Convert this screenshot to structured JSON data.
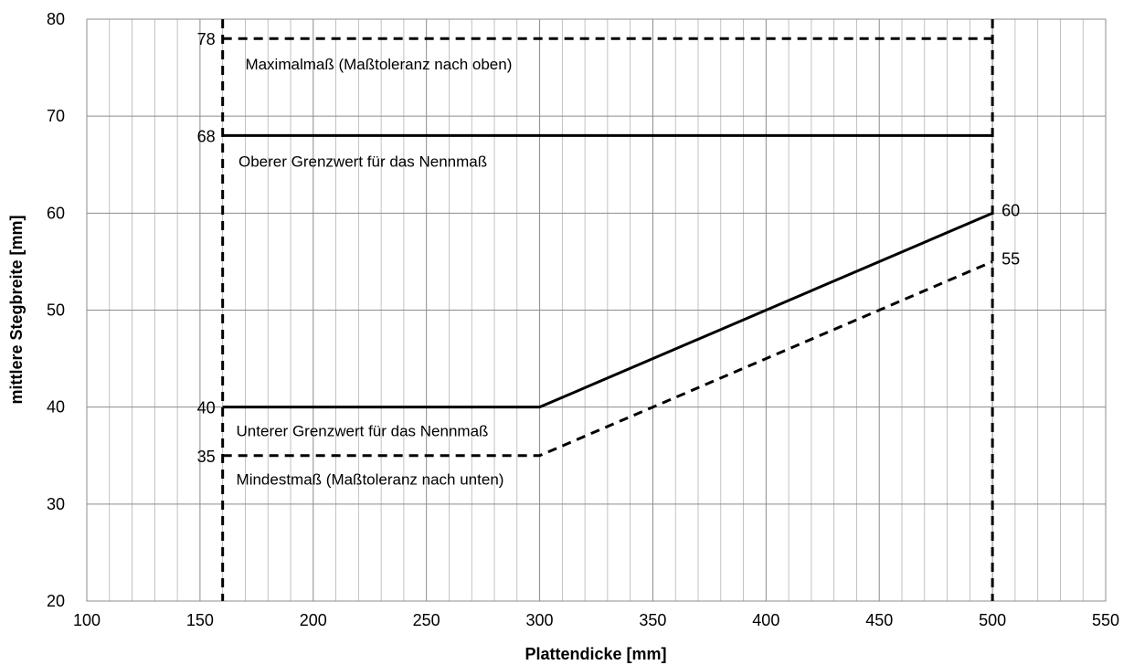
{
  "chart_data": {
    "type": "line",
    "xlabel": "Plattendicke  [mm]",
    "ylabel": "mittlere Stegbreite [mm]",
    "xlim": [
      100,
      550
    ],
    "ylim": [
      20,
      80
    ],
    "x_ticks": [
      100,
      150,
      200,
      250,
      300,
      350,
      400,
      450,
      500,
      550
    ],
    "y_ticks": [
      20,
      30,
      40,
      50,
      60,
      70,
      80
    ],
    "x_minor_step": 10,
    "grid": true,
    "legend": "none",
    "series": [
      {
        "name": "Maximalmaß (Maßtoleranz nach oben)",
        "style": "dashed",
        "points": [
          [
            160,
            78
          ],
          [
            500,
            78
          ]
        ]
      },
      {
        "name": "Oberer Grenzwert für das Nennmaß",
        "style": "solid",
        "points": [
          [
            160,
            68
          ],
          [
            500,
            68
          ]
        ]
      },
      {
        "name": "Unterer Grenzwert für das Nennmaß",
        "style": "solid",
        "points": [
          [
            160,
            40
          ],
          [
            300,
            40
          ],
          [
            500,
            60
          ]
        ]
      },
      {
        "name": "Mindestmaß (Maßtoleranz nach unten)",
        "style": "dashed",
        "points": [
          [
            160,
            35
          ],
          [
            300,
            35
          ],
          [
            500,
            55
          ]
        ]
      }
    ],
    "vertical_lines": [
      {
        "x": 160,
        "style": "dashed"
      },
      {
        "x": 500,
        "style": "dashed"
      }
    ],
    "value_labels": [
      {
        "text": "78",
        "x": 160,
        "y": 78,
        "side": "left"
      },
      {
        "text": "68",
        "x": 160,
        "y": 68,
        "side": "left"
      },
      {
        "text": "40",
        "x": 160,
        "y": 40,
        "side": "left"
      },
      {
        "text": "35",
        "x": 160,
        "y": 35,
        "side": "left"
      },
      {
        "text": "60",
        "x": 500,
        "y": 60,
        "side": "right"
      },
      {
        "text": "55",
        "x": 500,
        "y": 55,
        "side": "right"
      }
    ],
    "annotations": [
      {
        "text": "Maximalmaß (Maßtoleranz nach oben)",
        "x": 170,
        "y": 74.8
      },
      {
        "text": "Oberer Grenzwert für das Nennmaß",
        "x": 167,
        "y": 64.8
      },
      {
        "text": "Unterer Grenzwert für das Nennmaß",
        "x": 166,
        "y": 37.0
      },
      {
        "text": "Mindestmaß (Maßtoleranz nach unten)",
        "x": 166,
        "y": 32.0
      }
    ],
    "colors": {
      "line": "#000000",
      "grid": "#b3b3b3",
      "background": "#ffffff"
    }
  }
}
